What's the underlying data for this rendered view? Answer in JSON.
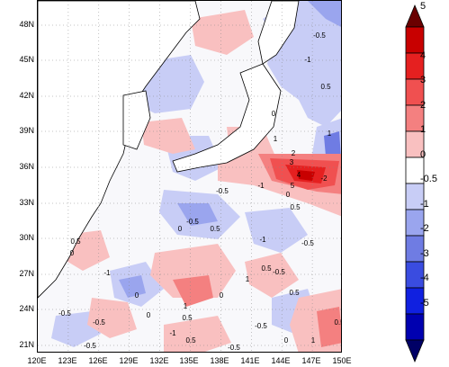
{
  "map": {
    "lat_labels": [
      "48N",
      "45N",
      "42N",
      "39N",
      "36N",
      "33N",
      "30N",
      "27N",
      "24N",
      "21N"
    ],
    "lon_labels": [
      "120E",
      "123E",
      "126E",
      "129E",
      "132E",
      "135E",
      "138E",
      "141E",
      "144E",
      "147E",
      "150E"
    ],
    "contour_labels": [
      "-0.5",
      "-1",
      "0.5",
      "0",
      "1",
      "2",
      "3",
      "4",
      "5",
      "-2",
      "-1",
      "0.5",
      "0",
      "-0.5",
      "1",
      "-0.5",
      "0.5",
      "0",
      "-1",
      "-0.5",
      "0.5",
      "1",
      "0",
      "-0.5",
      "0.5",
      "-1",
      "0",
      "-0.5",
      "1",
      "0.5",
      "0",
      "-0.5",
      "-0.5",
      "0.5",
      "-1",
      "0",
      "0.5",
      "1",
      "-0.5",
      "0",
      "0.5",
      "-0.5"
    ]
  },
  "colorbar": {
    "labels": [
      "5",
      "4",
      "3",
      "2",
      "1",
      "0",
      "-0.5",
      "-1",
      "-2",
      "-3",
      "-4",
      "-5"
    ],
    "colors": [
      "#6a0000",
      "#c80000",
      "#e52020",
      "#f05050",
      "#f48080",
      "#f9c0c0",
      "#ffffff",
      "#c8cdf6",
      "#9aa5ee",
      "#6f7ce3",
      "#3a4ce0",
      "#1020e0",
      "#0000b0",
      "#000066"
    ]
  }
}
